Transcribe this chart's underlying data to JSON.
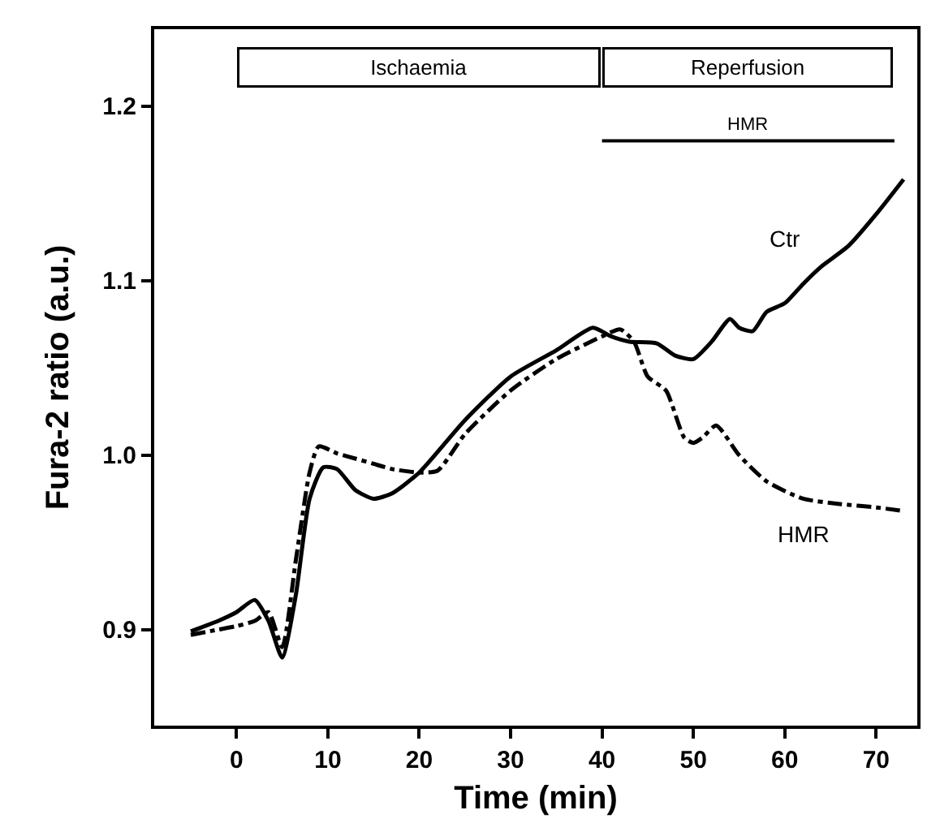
{
  "chart_data": {
    "type": "line",
    "xlabel": "Time (min)",
    "ylabel": "Fura-2 ratio (a.u.)",
    "xlim": [
      -9,
      74.5
    ],
    "ylim": [
      0.845,
      1.244
    ],
    "xticks": [
      0,
      10,
      20,
      30,
      40,
      50,
      60,
      70
    ],
    "yticks": [
      0.9,
      {
        "value": 1.0,
        "label": "1.0"
      },
      1.1,
      1.2
    ],
    "legend": false,
    "marker": "none",
    "series": [
      {
        "name": "Ctr",
        "color": "#000000",
        "line_style": "solid",
        "x": [
          -5,
          -2,
          0,
          2,
          3.5,
          5,
          6.5,
          8,
          9.5,
          11,
          13,
          15,
          17,
          20,
          25,
          30,
          35,
          39,
          41,
          43,
          46,
          48,
          50,
          52,
          54,
          55,
          56.5,
          58,
          60,
          62,
          64,
          67,
          70,
          73
        ],
        "values": [
          0.899,
          0.905,
          0.91,
          0.917,
          0.905,
          0.884,
          0.92,
          0.975,
          0.993,
          0.992,
          0.98,
          0.975,
          0.978,
          0.99,
          1.02,
          1.045,
          1.06,
          1.073,
          1.068,
          1.065,
          1.064,
          1.057,
          1.055,
          1.065,
          1.078,
          1.073,
          1.071,
          1.082,
          1.087,
          1.098,
          1.108,
          1.12,
          1.138,
          1.158
        ]
      },
      {
        "name": "HMR",
        "color": "#000000",
        "line_style": "dashdot",
        "x": [
          -5,
          -2,
          0,
          2,
          3.5,
          5,
          6.5,
          8,
          9,
          11,
          13,
          15,
          17,
          20,
          22,
          25,
          30,
          35,
          40,
          42,
          43.5,
          45,
          47,
          49,
          50,
          51,
          52.5,
          55,
          58,
          62,
          66,
          70,
          73
        ],
        "values": [
          0.897,
          0.9,
          0.902,
          0.905,
          0.91,
          0.89,
          0.94,
          0.99,
          1.005,
          1.001,
          0.998,
          0.995,
          0.992,
          0.99,
          0.991,
          1.012,
          1.037,
          1.055,
          1.068,
          1.072,
          1.065,
          1.045,
          1.037,
          1.01,
          1.007,
          1.01,
          1.017,
          1.0,
          0.985,
          0.975,
          0.972,
          0.97,
          0.968
        ]
      },
      {
        "name": "HMR",
        "color": "#000000",
        "line_style": "solid",
        "x": [
          40,
          72
        ],
        "values": [
          1.18,
          1.18
        ]
      }
    ],
    "annotations": [
      "Ischaemia",
      "Reperfusion"
    ]
  }
}
